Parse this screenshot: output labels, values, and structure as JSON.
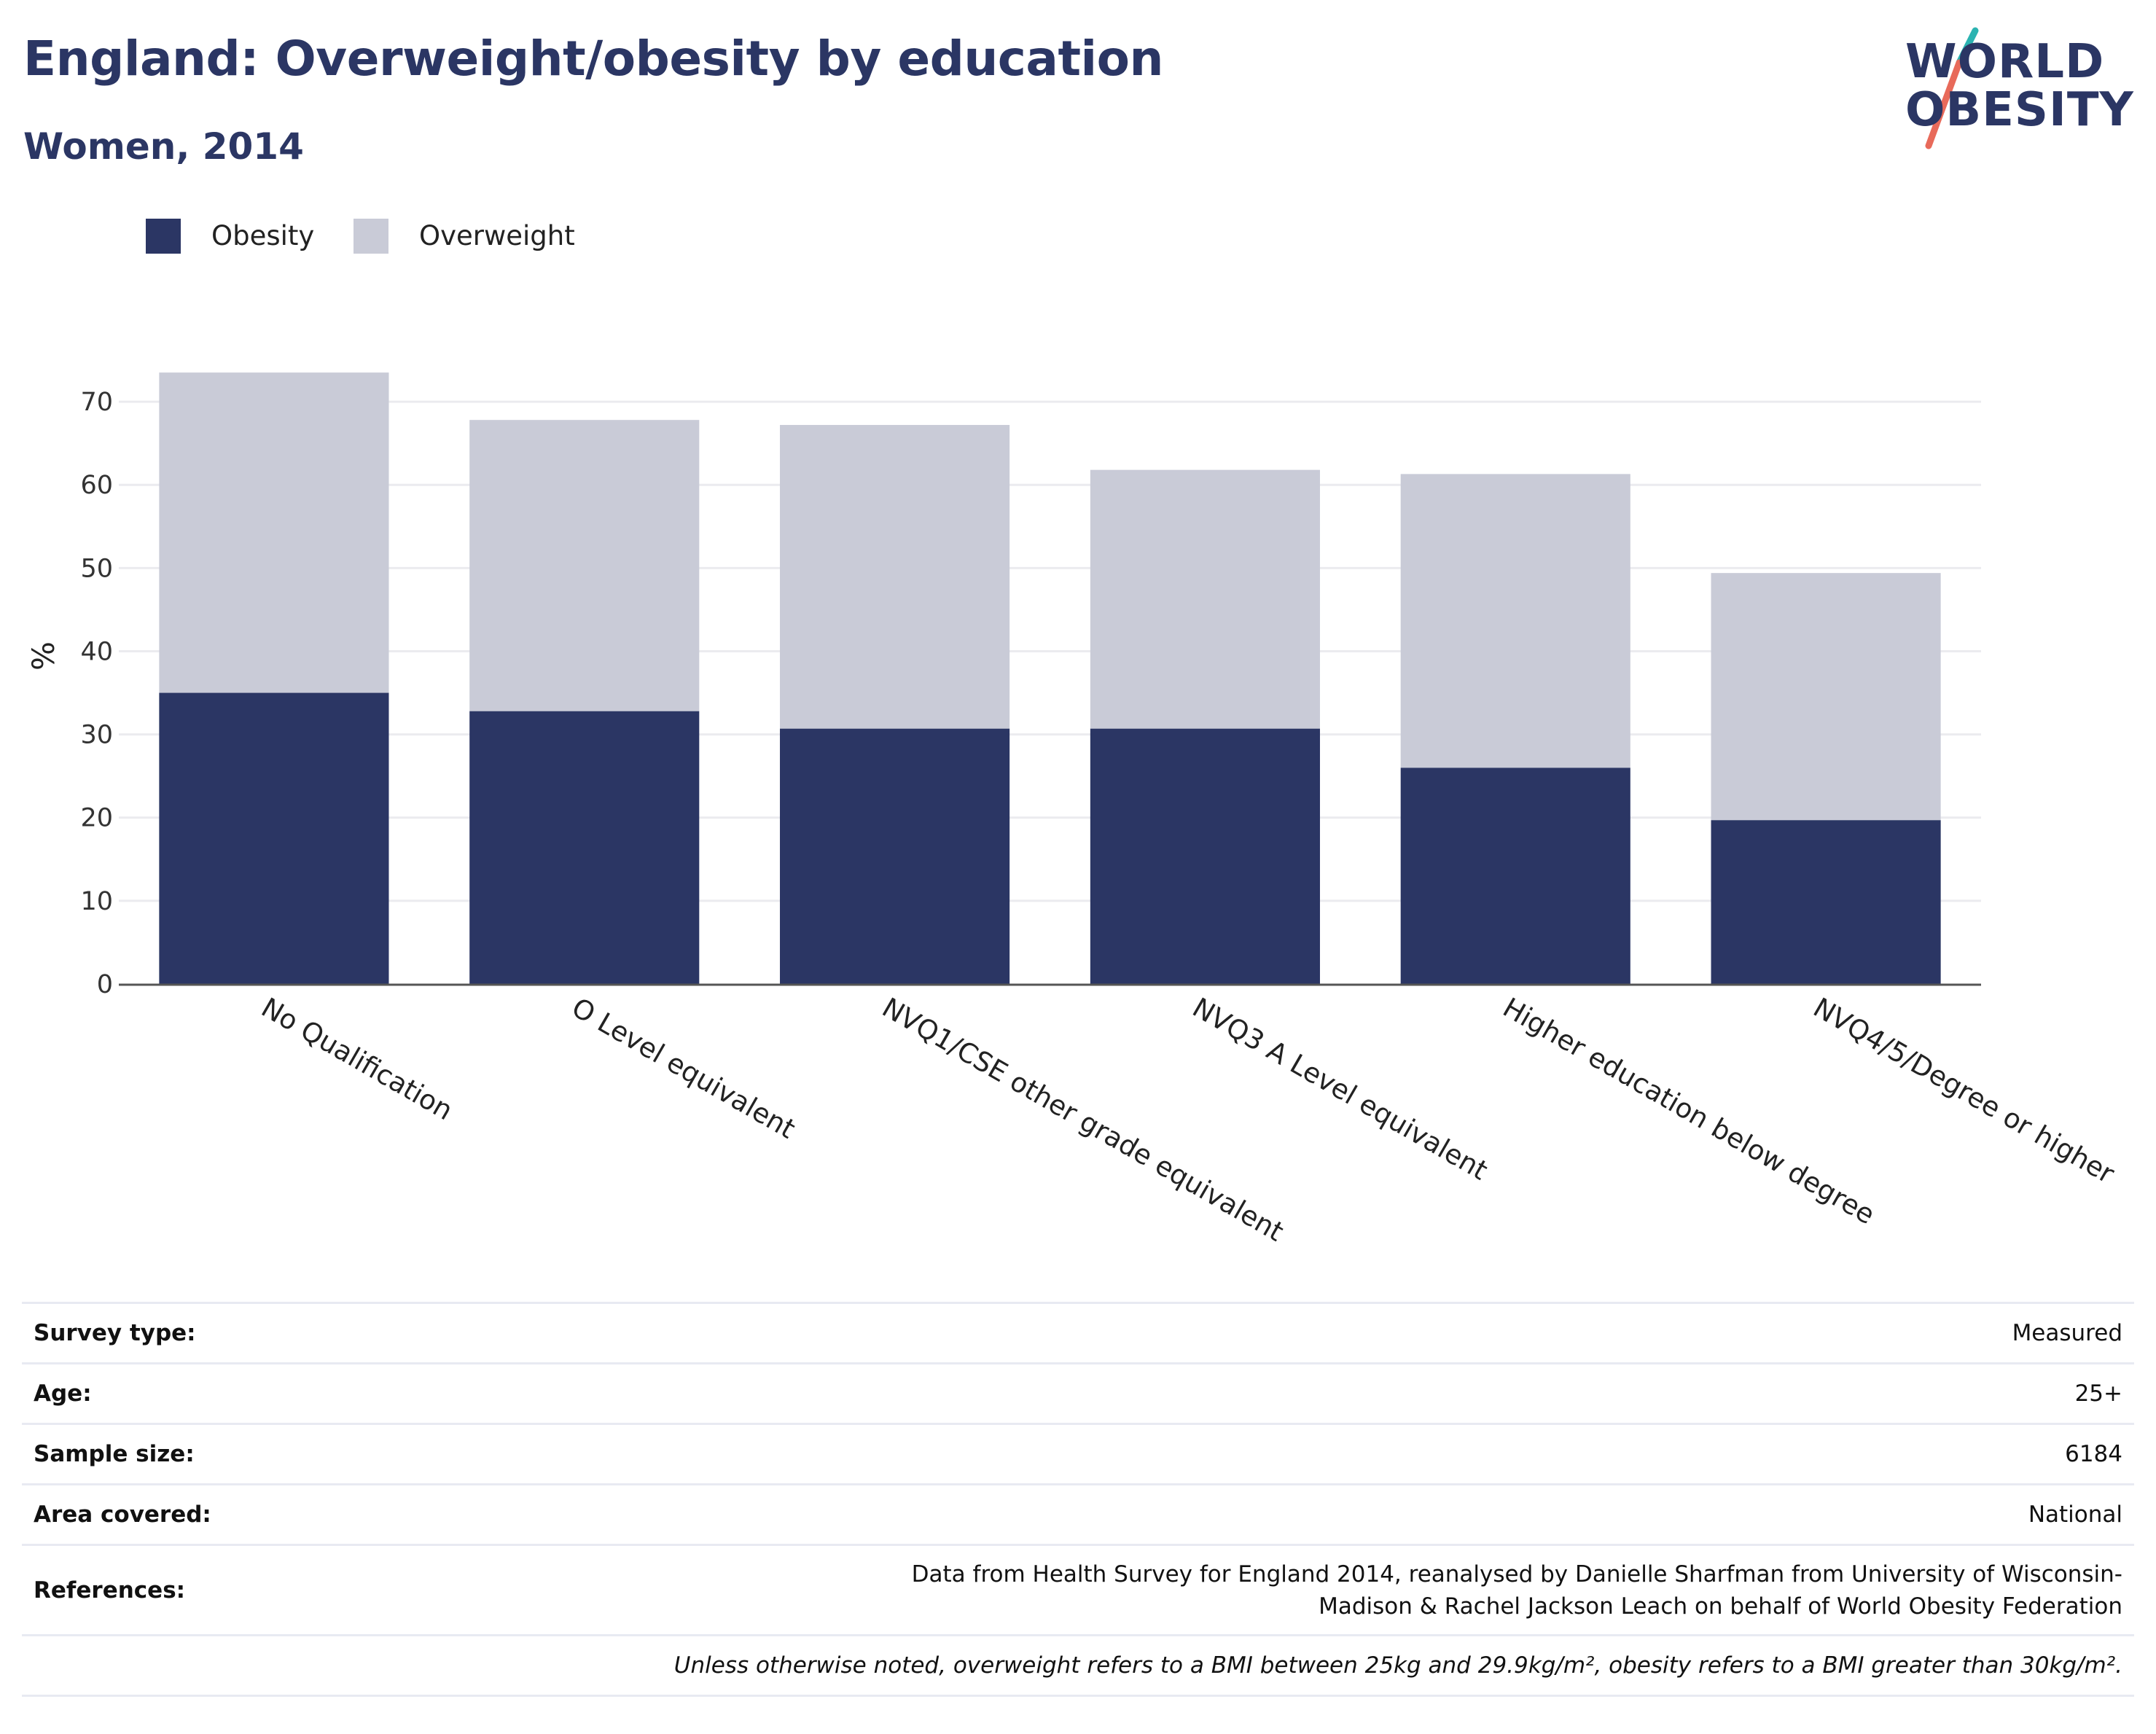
{
  "header": {
    "title": "England: Overweight/obesity by education",
    "subtitle": "Women, 2014"
  },
  "logo": {
    "line1": "WORLD",
    "line2": "OBESITY"
  },
  "legend": [
    {
      "label": "Obesity",
      "color": "#2b3664"
    },
    {
      "label": "Overweight",
      "color": "#c9cbd7"
    }
  ],
  "chart_data": {
    "type": "bar",
    "stacked": true,
    "title": "England: Overweight/obesity by education",
    "subtitle": "Women, 2014",
    "xlabel": "",
    "ylabel": "%",
    "ylim": [
      0,
      75
    ],
    "yticks": [
      0,
      10,
      20,
      30,
      40,
      50,
      60,
      70
    ],
    "grid": true,
    "legend_position": "top-left",
    "categories": [
      "No Qualification",
      "O Level equivalent",
      "NVQ1/CSE other grade equivalent",
      "NVQ3 A Level equivalent",
      "Higher education below degree",
      "NVQ4/5/Degree or higher"
    ],
    "series": [
      {
        "name": "Obesity",
        "color": "#2b3664",
        "values": [
          35.0,
          32.8,
          30.7,
          30.7,
          26.0,
          19.7
        ]
      },
      {
        "name": "Overweight",
        "color": "#c9cbd7",
        "values": [
          38.5,
          35.0,
          36.5,
          31.1,
          35.3,
          29.7
        ]
      }
    ]
  },
  "info": {
    "rows": [
      {
        "key": "Survey type:",
        "value": "Measured"
      },
      {
        "key": "Age:",
        "value": "25+"
      },
      {
        "key": "Sample size:",
        "value": "6184"
      },
      {
        "key": "Area covered:",
        "value": "National"
      },
      {
        "key": "References:",
        "value": "Data from Health Survey for England 2014, reanalysed by Danielle Sharfman from University of Wisconsin-Madison & Rachel Jackson Leach on behalf of World Obesity Federation"
      }
    ],
    "note": "Unless otherwise noted, overweight refers to a BMI between 25kg and 29.9kg/m², obesity refers to a BMI greater than 30kg/m²."
  }
}
